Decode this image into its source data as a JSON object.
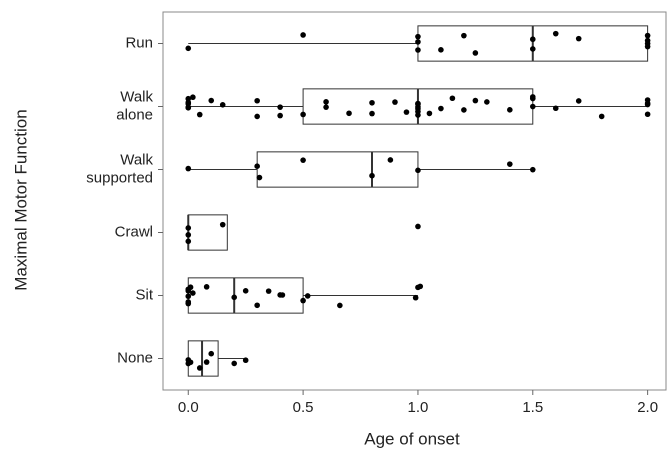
{
  "chart_data": {
    "type": "box",
    "xlabel": "Age of onset",
    "ylabel": "Maximal Motor Function",
    "categories": [
      [
        "Run"
      ],
      [
        "Walk",
        "alone"
      ],
      [
        "Walk",
        "supported"
      ],
      [
        "Crawl"
      ],
      [
        "Sit"
      ],
      [
        "None"
      ]
    ],
    "boxes": [
      {
        "min": 0,
        "q1": 1.0,
        "median": 1.5,
        "q3": 2.0,
        "max": 2.0
      },
      {
        "min": 0,
        "q1": 0.5,
        "median": 1.0,
        "q3": 1.5,
        "max": 2.0
      },
      {
        "min": 0,
        "q1": 0.3,
        "median": 0.8,
        "q3": 1.0,
        "max": 1.5
      },
      {
        "min": 0,
        "q1": 0,
        "median": 0,
        "q3": 0.17,
        "max": 0.17
      },
      {
        "min": 0,
        "q1": 0,
        "median": 0.2,
        "q3": 0.5,
        "max": 1.0
      },
      {
        "min": 0,
        "q1": 0,
        "median": 0.06,
        "q3": 0.13,
        "max": 0.25
      }
    ],
    "points": [
      [
        0,
        0.5,
        1.0,
        1.0,
        1.0,
        1.1,
        1.2,
        1.25,
        1.5,
        1.5,
        1.6,
        1.7,
        2.0,
        2.0,
        2.0,
        2.0
      ],
      [
        0,
        0,
        0,
        0,
        0,
        0.02,
        0.05,
        0.1,
        0.15,
        0.3,
        0.3,
        0.4,
        0.4,
        0.5,
        0.6,
        0.6,
        0.7,
        0.8,
        0.8,
        0.9,
        0.95,
        1.0,
        1.0,
        1.0,
        1.0,
        1.0,
        1.0,
        1.05,
        1.1,
        1.15,
        1.2,
        1.25,
        1.3,
        1.4,
        1.5,
        1.5,
        1.5,
        1.6,
        1.7,
        1.8,
        2.0,
        2.0,
        2.0,
        2.0
      ],
      [
        0,
        0.3,
        0.31,
        0.5,
        0.8,
        0.88,
        1.0,
        1.4,
        1.5
      ],
      [
        0,
        0,
        0,
        0.15,
        1.0
      ],
      [
        0,
        0,
        0,
        0,
        0,
        0.01,
        0.02,
        0.08,
        0.2,
        0.25,
        0.3,
        0.35,
        0.4,
        0.41,
        0.5,
        0.52,
        0.66,
        0.99,
        1.0,
        1.01
      ],
      [
        0,
        0,
        0.01,
        0.05,
        0.08,
        0.1,
        0.2,
        0.25
      ]
    ],
    "xlim": [
      -0.11,
      2.08
    ],
    "xticks": [
      {
        "value": 0,
        "label": "0.0"
      },
      {
        "value": 0.5,
        "label": "0.5"
      },
      {
        "value": 1,
        "label": "1.0"
      },
      {
        "value": 1.5,
        "label": "1.5"
      },
      {
        "value": 2,
        "label": "2.0"
      }
    ],
    "box_color": "#ffffff",
    "point_color": "#000000"
  }
}
